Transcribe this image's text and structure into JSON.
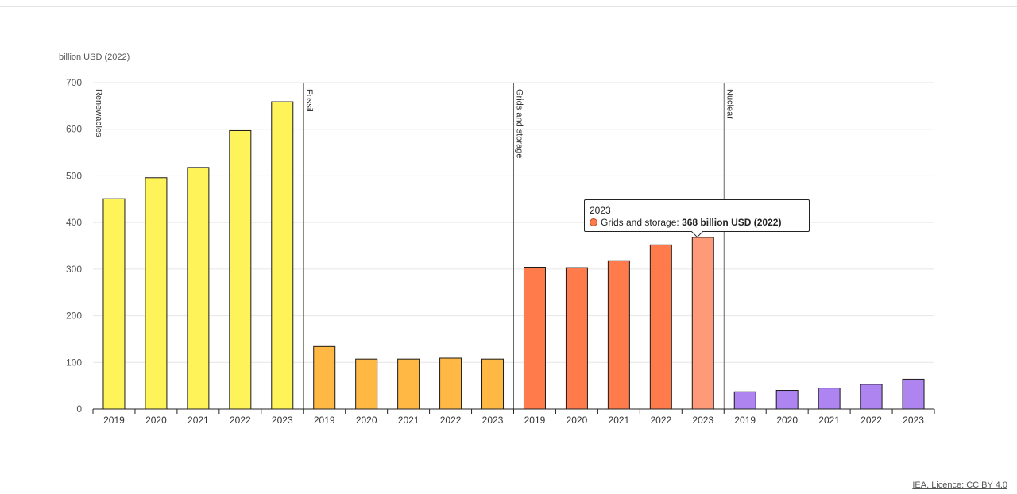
{
  "chart_data": {
    "type": "bar",
    "ylabel": "billion USD (2022)",
    "ylim": [
      0,
      700
    ],
    "yticks": [
      0,
      100,
      200,
      300,
      400,
      500,
      600,
      700
    ],
    "grid": true,
    "groups": [
      {
        "name": "Renewables",
        "color": "#fff35a",
        "categories": [
          "2019",
          "2020",
          "2021",
          "2022",
          "2023"
        ],
        "values": [
          451,
          496,
          518,
          597,
          659
        ]
      },
      {
        "name": "Fossil",
        "color": "#ffb844",
        "categories": [
          "2019",
          "2020",
          "2021",
          "2022",
          "2023"
        ],
        "values": [
          134,
          107,
          107,
          109,
          107
        ]
      },
      {
        "name": "Grids and storage",
        "color": "#ff7b4c",
        "categories": [
          "2019",
          "2020",
          "2021",
          "2022",
          "2023"
        ],
        "values": [
          304,
          303,
          318,
          352,
          368
        ]
      },
      {
        "name": "Nuclear",
        "color": "#ad84f0",
        "categories": [
          "2019",
          "2020",
          "2021",
          "2022",
          "2023"
        ],
        "values": [
          37,
          40,
          45,
          53,
          64
        ]
      }
    ],
    "highlight": {
      "group": 2,
      "index": 4,
      "color": "#ff9a78"
    }
  },
  "tooltip": {
    "year": "2023",
    "series": "Grids and storage:",
    "value": "368 billion USD (2022)",
    "dot_color": "#ff7b4c"
  },
  "credit": "IEA. Licence: CC BY 4.0"
}
